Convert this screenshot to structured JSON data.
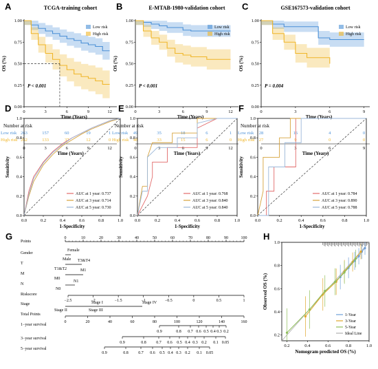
{
  "panels": {
    "A": {
      "letter": "A",
      "title": "TCGA-training cohort",
      "pvalue": "P < 0.001",
      "legend": [
        "Low risk",
        "High risk"
      ],
      "ylabel": "OS (%)",
      "xlabel": "Time (Years)",
      "yticks": [
        "0.00",
        "0.25",
        "0.50",
        "0.75",
        "1.00"
      ],
      "xticks": [
        "0",
        "3",
        "6",
        "9",
        "12"
      ],
      "risk_title": "Number at risk",
      "risk_rows": [
        {
          "label": "Low risk",
          "values": [
            "263",
            "157",
            "60",
            "19",
            "1"
          ]
        },
        {
          "label": "High risk",
          "values": [
            "262",
            "133",
            "37",
            "12",
            "0"
          ]
        }
      ]
    },
    "B": {
      "letter": "B",
      "title": "E-MTAB-1980-validation cohort",
      "pvalue": "P < 0.001",
      "legend": [
        "Low risk",
        "High risk"
      ],
      "ylabel": "OS (%)",
      "xlabel": "Time (Years)",
      "yticks": [
        "0.00",
        "0.25",
        "0.50",
        "0.75",
        "1.00"
      ],
      "xticks": [
        "0",
        "3",
        "6",
        "9",
        "12"
      ],
      "risk_title": "Number at risk",
      "risk_rows": [
        {
          "label": "Low risk",
          "values": [
            "49",
            "35",
            "18",
            "6",
            "1"
          ]
        },
        {
          "label": "High risk",
          "values": [
            "48",
            "33",
            "15",
            "6",
            "0"
          ]
        }
      ]
    },
    "C": {
      "letter": "C",
      "title": "GSE167573-validation cohort",
      "pvalue": "P = 0.004",
      "legend": [
        "Low risk",
        "High risk"
      ],
      "ylabel": "OS (%)",
      "xlabel": "Time (Years)",
      "yticks": [
        "0.00",
        "0.25",
        "0.50",
        "0.75",
        "1.00"
      ],
      "xticks": [
        "0",
        "3",
        "6",
        "9"
      ],
      "risk_title": "Number at risk",
      "risk_rows": [
        {
          "label": "Low risk",
          "values": [
            "28",
            "16",
            "4",
            "0"
          ]
        },
        {
          "label": "High risk",
          "values": [
            "27",
            "9",
            "0",
            "0"
          ]
        }
      ]
    },
    "D": {
      "letter": "D",
      "ylabel": "Sensitivity",
      "xlabel": "1-Specificity",
      "ticks": [
        "0.0",
        "0.2",
        "0.4",
        "0.6",
        "0.8",
        "1.0"
      ],
      "legend": [
        "AUC at 1 year: 0.737",
        "AUC at 3 year: 0.714",
        "AUC at 5 year: 0.730"
      ]
    },
    "E": {
      "letter": "E",
      "ylabel": "Sensitivity",
      "xlabel": "1-Specificity",
      "ticks": [
        "0.0",
        "0.2",
        "0.4",
        "0.6",
        "0.8",
        "1.0"
      ],
      "legend": [
        "AUC at 1 year: 0.768",
        "AUC at 3 year: 0.840",
        "AUC at 5 year: 0.840"
      ]
    },
    "F": {
      "letter": "F",
      "ylabel": "Sensitivity",
      "xlabel": "1-Specificity",
      "ticks": [
        "0.0",
        "0.2",
        "0.4",
        "0.6",
        "0.8",
        "1.0"
      ],
      "legend": [
        "AUC at 1 year: 0.784",
        "AUC at 3 year: 0.890",
        "AUC at 5 year: 0.788"
      ]
    },
    "G": {
      "letter": "G"
    },
    "H": {
      "letter": "H",
      "ylabel": "Observed OS (%)",
      "xlabel": "Nomogram predicted OS (%)",
      "ticks": [
        "0.2",
        "0.4",
        "0.6",
        "0.8",
        "1.0"
      ],
      "legend": [
        "1-Year",
        "3-Year",
        "5-Year",
        "Ideal Line"
      ]
    }
  },
  "nomogram": {
    "rows": [
      "Points",
      "Gender",
      "T",
      "M",
      "N",
      "Riskscore",
      "Stage",
      "Total Points",
      "1−year survival",
      "3−year survival",
      "5−year survival"
    ],
    "points_ticks": [
      "0",
      "10",
      "20",
      "30",
      "40",
      "50",
      "60",
      "70",
      "80",
      "90",
      "100"
    ],
    "gender": [
      "Female",
      "Male"
    ],
    "t": [
      "T1&T2",
      "T3&T4"
    ],
    "m": [
      "M0",
      "M1"
    ],
    "n": [
      "N0",
      "N1"
    ],
    "riskscore_ticks": [
      "−2.5",
      "−2",
      "−1.5",
      "−1",
      "−0.5",
      "0",
      "0.5",
      "1"
    ],
    "stage": [
      "Stage I",
      "Stage II",
      "Stage III",
      "Stage IV"
    ],
    "total_ticks": [
      "0",
      "20",
      "40",
      "60",
      "80",
      "100",
      "120",
      "140",
      "160"
    ],
    "surv1": [
      "0.9",
      "0.8",
      "0.7",
      "0.6",
      "0.5",
      "0.4",
      "0.3",
      "0.2"
    ],
    "surv3": [
      "0.9",
      "0.8",
      "0.7",
      "0.6",
      "0.5",
      "0.4",
      "0.3",
      "0.2",
      "0.1",
      "0.05"
    ],
    "surv5": [
      "0.9",
      "0.8",
      "0.7",
      "0.6",
      "0.5",
      "0.4",
      "0.3",
      "0.2",
      "0.1",
      "0.05"
    ]
  },
  "colors": {
    "low": "#4a8fd6",
    "high": "#f0b62a",
    "auc1": "#e26a6a",
    "auc3": "#d6a23a",
    "auc5": "#9bb7d8",
    "y1": "#6f9fd8",
    "y3": "#e0a62a",
    "y5": "#8fbf5a",
    "ideal": "#b0b0b0"
  },
  "chart_data": [
    {
      "type": "line",
      "panel": "A",
      "title": "TCGA-training cohort",
      "xlabel": "Time (Years)",
      "ylabel": "OS (%)",
      "xlim": [
        0,
        13
      ],
      "ylim": [
        0,
        1
      ],
      "series": [
        {
          "name": "Low risk",
          "x": [
            0,
            1,
            2,
            3,
            4,
            5,
            6,
            7,
            8,
            9,
            10,
            11,
            12
          ],
          "y": [
            1.0,
            0.95,
            0.91,
            0.88,
            0.85,
            0.82,
            0.79,
            0.77,
            0.74,
            0.72,
            0.7,
            0.65,
            0.65
          ]
        },
        {
          "name": "High risk",
          "x": [
            0,
            1,
            2,
            3,
            4,
            5,
            6,
            7,
            8,
            9,
            10,
            11,
            12
          ],
          "y": [
            1.0,
            0.85,
            0.72,
            0.62,
            0.55,
            0.48,
            0.43,
            0.38,
            0.35,
            0.33,
            0.3,
            0.26,
            0.26
          ]
        }
      ]
    },
    {
      "type": "line",
      "panel": "B",
      "title": "E-MTAB-1980-validation cohort",
      "xlabel": "Time (Years)",
      "ylabel": "OS (%)",
      "xlim": [
        0,
        13
      ],
      "ylim": [
        0,
        1
      ],
      "series": [
        {
          "name": "Low risk",
          "x": [
            0,
            1,
            2,
            3,
            4,
            5,
            6,
            7,
            8,
            9,
            10,
            11,
            12
          ],
          "y": [
            1.0,
            0.98,
            0.96,
            0.94,
            0.92,
            0.92,
            0.89,
            0.88,
            0.88,
            0.88,
            0.88,
            0.88,
            0.88
          ]
        },
        {
          "name": "High risk",
          "x": [
            0,
            1,
            2,
            3,
            4,
            5,
            6,
            7,
            8,
            9,
            10,
            11,
            12
          ],
          "y": [
            1.0,
            0.88,
            0.8,
            0.75,
            0.68,
            0.62,
            0.6,
            0.58,
            0.58,
            0.55,
            0.55,
            0.55,
            0.55
          ]
        }
      ]
    },
    {
      "type": "line",
      "panel": "C",
      "title": "GSE167573-validation cohort",
      "xlabel": "Time (Years)",
      "ylabel": "OS (%)",
      "xlim": [
        0,
        9.5
      ],
      "ylim": [
        0,
        1
      ],
      "series": [
        {
          "name": "Low risk",
          "x": [
            0,
            1,
            2,
            3,
            4,
            5,
            6,
            7,
            8,
            9
          ],
          "y": [
            1.0,
            0.96,
            0.93,
            0.93,
            0.93,
            0.8,
            0.78,
            0.78,
            0.78,
            0.78
          ]
        },
        {
          "name": "High risk",
          "x": [
            0,
            1,
            2,
            3,
            4,
            5,
            6
          ],
          "y": [
            1.0,
            0.85,
            0.75,
            0.62,
            0.57,
            0.57,
            0.5
          ]
        }
      ]
    },
    {
      "type": "line",
      "panel": "D",
      "xlabel": "1-Specificity",
      "ylabel": "Sensitivity",
      "xlim": [
        0,
        1
      ],
      "ylim": [
        0,
        1
      ],
      "series": [
        {
          "name": "AUC at 1 year: 0.737",
          "x": [
            0,
            0.05,
            0.1,
            0.2,
            0.3,
            0.4,
            0.5,
            0.6,
            0.7,
            0.8,
            0.9,
            1
          ],
          "y": [
            0,
            0.25,
            0.4,
            0.55,
            0.66,
            0.74,
            0.8,
            0.85,
            0.9,
            0.94,
            0.98,
            1
          ]
        },
        {
          "name": "AUC at 3 year: 0.714",
          "x": [
            0,
            0.05,
            0.1,
            0.2,
            0.3,
            0.4,
            0.5,
            0.6,
            0.7,
            0.8,
            0.9,
            1
          ],
          "y": [
            0,
            0.2,
            0.35,
            0.52,
            0.63,
            0.72,
            0.78,
            0.84,
            0.89,
            0.93,
            0.97,
            1
          ]
        },
        {
          "name": "AUC at 5 year: 0.730",
          "x": [
            0,
            0.05,
            0.1,
            0.2,
            0.3,
            0.4,
            0.5,
            0.6,
            0.7,
            0.8,
            0.9,
            1
          ],
          "y": [
            0,
            0.22,
            0.38,
            0.54,
            0.65,
            0.73,
            0.8,
            0.85,
            0.9,
            0.94,
            0.98,
            1
          ]
        }
      ]
    },
    {
      "type": "line",
      "panel": "E",
      "xlabel": "1-Specificity",
      "ylabel": "Sensitivity",
      "xlim": [
        0,
        1
      ],
      "ylim": [
        0,
        1
      ],
      "series": [
        {
          "name": "AUC at 1 year: 0.768",
          "x": [
            0,
            0.05,
            0.1,
            0.15,
            0.15,
            0.3,
            0.3,
            0.6,
            0.6,
            0.8,
            1
          ],
          "y": [
            0,
            0.1,
            0.2,
            0.4,
            0.55,
            0.55,
            0.7,
            0.7,
            0.9,
            1,
            1
          ]
        },
        {
          "name": "AUC at 3 year: 0.840",
          "x": [
            0,
            0.05,
            0.1,
            0.1,
            0.15,
            0.35,
            0.35,
            0.6,
            0.6,
            0.7,
            1
          ],
          "y": [
            0,
            0.3,
            0.3,
            0.6,
            0.75,
            0.75,
            0.85,
            0.85,
            1,
            1,
            1
          ]
        },
        {
          "name": "AUC at 5 year: 0.840",
          "x": [
            0,
            0.05,
            0.1,
            0.1,
            0.2,
            0.4,
            0.4,
            0.6,
            0.6,
            0.8,
            1
          ],
          "y": [
            0,
            0.25,
            0.25,
            0.6,
            0.7,
            0.7,
            0.8,
            0.8,
            0.95,
            1,
            1
          ]
        }
      ]
    },
    {
      "type": "line",
      "panel": "F",
      "xlabel": "1-Specificity",
      "ylabel": "Sensitivity",
      "xlim": [
        0,
        1
      ],
      "ylim": [
        0,
        1
      ],
      "series": [
        {
          "name": "AUC at 1 year: 0.784",
          "x": [
            0,
            0.08,
            0.08,
            0.15,
            0.15,
            0.35,
            0.35,
            1
          ],
          "y": [
            0,
            0,
            0.25,
            0.25,
            0.5,
            0.5,
            1,
            1
          ]
        },
        {
          "name": "AUC at 3 year: 0.890",
          "x": [
            0,
            0.05,
            0.05,
            0.2,
            0.2,
            0.3,
            0.3,
            1
          ],
          "y": [
            0,
            0.25,
            0.6,
            0.6,
            0.8,
            0.8,
            1,
            1
          ]
        },
        {
          "name": "AUC at 5 year: 0.788",
          "x": [
            0,
            0.1,
            0.1,
            0.25,
            0.25,
            0.4,
            0.4,
            1
          ],
          "y": [
            0,
            0,
            0.5,
            0.5,
            0.75,
            0.75,
            1,
            1
          ]
        }
      ]
    },
    {
      "type": "scatter",
      "panel": "H",
      "xlabel": "Nomogram predicted OS (%)",
      "ylabel": "Observed OS (%)",
      "xlim": [
        0.15,
        1.0
      ],
      "ylim": [
        0.15,
        1.0
      ],
      "series": [
        {
          "name": "1-Year",
          "x": [
            0.72,
            0.8,
            0.86,
            0.9,
            0.93,
            0.96
          ],
          "y": [
            0.7,
            0.78,
            0.84,
            0.88,
            0.92,
            0.95
          ]
        },
        {
          "name": "3-Year",
          "x": [
            0.38,
            0.55,
            0.68,
            0.76,
            0.84,
            0.92
          ],
          "y": [
            0.36,
            0.55,
            0.66,
            0.75,
            0.83,
            0.92
          ]
        },
        {
          "name": "5-Year",
          "x": [
            0.2,
            0.42,
            0.57,
            0.67,
            0.76,
            0.87
          ],
          "y": [
            0.22,
            0.42,
            0.58,
            0.66,
            0.74,
            0.86
          ]
        }
      ]
    }
  ]
}
